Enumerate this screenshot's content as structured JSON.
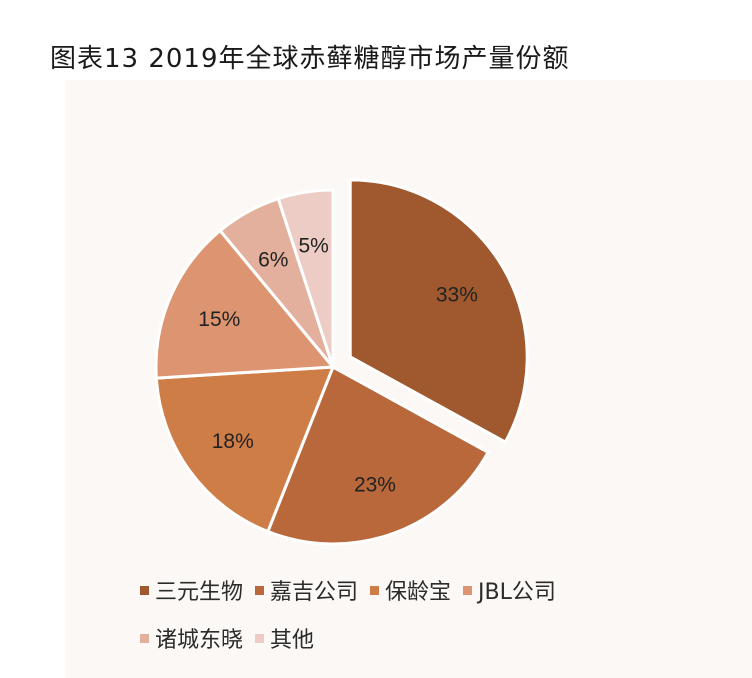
{
  "title": "图表13 2019年全球赤藓糖醇市场产量份额",
  "chart_data": {
    "type": "pie",
    "title": "图表13 2019年全球赤藓糖醇市场产量份额",
    "categories": [
      "三元生物",
      "嘉吉公司",
      "保龄宝",
      "JBL公司",
      "诸城东晓",
      "其他"
    ],
    "values": [
      33,
      23,
      18,
      15,
      6,
      5
    ],
    "labels": [
      "33%",
      "23%",
      "18%",
      "15%",
      "6%",
      "5%"
    ],
    "unit": "%",
    "colors": [
      "#a0592e",
      "#b8683a",
      "#cf7d47",
      "#dc9570",
      "#e2b09c",
      "#ecccc4"
    ],
    "legend_position": "bottom"
  }
}
